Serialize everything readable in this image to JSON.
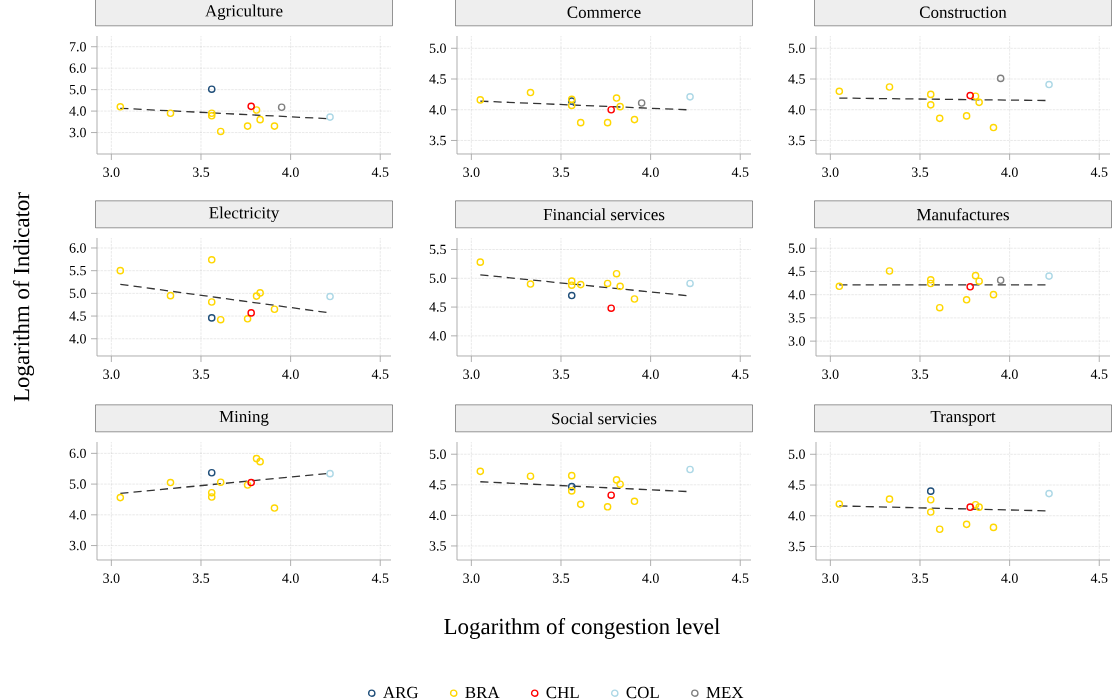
{
  "chart_data": [
    {
      "type": "scatter",
      "title": "Agriculture",
      "xlim": [
        2.92,
        4.56
      ],
      "ylim": [
        2.0,
        7.5
      ],
      "grid": true,
      "marker": "circle",
      "legend": "bottom",
      "xticks": [
        {
          "value": 3,
          "label": "3.0"
        },
        {
          "value": 3.5,
          "label": "3.5"
        },
        {
          "value": 4,
          "label": "4.0"
        },
        {
          "value": 4.5,
          "label": "4.5"
        }
      ],
      "yticks": [
        {
          "value": 3,
          "label": "3.0"
        },
        {
          "value": 4,
          "label": "4.0"
        },
        {
          "value": 5,
          "label": "5.0"
        },
        {
          "value": 6,
          "label": "6.0"
        },
        {
          "value": 7,
          "label": "7.0"
        }
      ],
      "series": [
        {
          "type": "line",
          "color": "#333333",
          "line_style": "dashed",
          "marker": "none",
          "x": [
            3.05,
            4.2
          ],
          "values": [
            4.13,
            3.65
          ]
        },
        {
          "name": "ARG",
          "color": "#1f4e79",
          "x": [
            3.56
          ],
          "values": [
            5.02
          ]
        },
        {
          "name": "BRA",
          "color": "#ffd700",
          "x": [
            3.05,
            3.33,
            3.56,
            3.56,
            3.61,
            3.76,
            3.81,
            3.83,
            3.91
          ],
          "values": [
            4.2,
            3.9,
            3.9,
            3.78,
            3.05,
            3.3,
            4.05,
            3.6,
            3.3
          ]
        },
        {
          "name": "CHL",
          "color": "#ff0000",
          "x": [
            3.78
          ],
          "values": [
            4.22
          ]
        },
        {
          "name": "COL",
          "color": "#add8e6",
          "x": [
            4.22
          ],
          "values": [
            3.72
          ]
        },
        {
          "name": "MEX",
          "color": "#808080",
          "x": [
            3.95
          ],
          "values": [
            4.18
          ]
        }
      ]
    },
    {
      "type": "scatter",
      "title": "Commerce",
      "xlim": [
        2.92,
        4.56
      ],
      "ylim": [
        3.28,
        5.2
      ],
      "grid": true,
      "marker": "circle",
      "xticks": [
        {
          "value": 3,
          "label": "3.0"
        },
        {
          "value": 3.5,
          "label": "3.5"
        },
        {
          "value": 4,
          "label": "4.0"
        },
        {
          "value": 4.5,
          "label": "4.5"
        }
      ],
      "yticks": [
        {
          "value": 3.5,
          "label": "3.5"
        },
        {
          "value": 4,
          "label": "4.0"
        },
        {
          "value": 4.5,
          "label": "4.5"
        },
        {
          "value": 5,
          "label": "5.0"
        }
      ],
      "series": [
        {
          "type": "line",
          "color": "#333333",
          "line_style": "dashed",
          "marker": "none",
          "x": [
            3.05,
            4.2
          ],
          "values": [
            4.14,
            4.0
          ]
        },
        {
          "color": "#1f4e79",
          "x": [
            3.56
          ],
          "values": [
            4.14
          ]
        },
        {
          "color": "#ffd700",
          "x": [
            3.05,
            3.33,
            3.56,
            3.56,
            3.61,
            3.76,
            3.81,
            3.83,
            3.91
          ],
          "values": [
            4.16,
            4.28,
            4.17,
            4.07,
            3.79,
            3.79,
            4.19,
            4.05,
            3.84
          ]
        },
        {
          "color": "#ff0000",
          "x": [
            3.78
          ],
          "values": [
            4.0
          ]
        },
        {
          "color": "#add8e6",
          "x": [
            4.22
          ],
          "values": [
            4.21
          ]
        },
        {
          "color": "#808080",
          "x": [
            3.95
          ],
          "values": [
            4.11
          ]
        }
      ]
    },
    {
      "type": "scatter",
      "title": "Construction",
      "xlim": [
        2.92,
        4.56
      ],
      "ylim": [
        3.28,
        5.2
      ],
      "grid": true,
      "marker": "circle",
      "xticks": [
        {
          "value": 3,
          "label": "3.0"
        },
        {
          "value": 3.5,
          "label": "3.5"
        },
        {
          "value": 4,
          "label": "4.0"
        },
        {
          "value": 4.5,
          "label": "4.5"
        }
      ],
      "yticks": [
        {
          "value": 3.5,
          "label": "3.5"
        },
        {
          "value": 4,
          "label": "4.0"
        },
        {
          "value": 4.5,
          "label": "4.5"
        },
        {
          "value": 5,
          "label": "5.0"
        }
      ],
      "series": [
        {
          "type": "line",
          "color": "#333333",
          "line_style": "dashed",
          "marker": "none",
          "x": [
            3.05,
            4.2
          ],
          "values": [
            4.19,
            4.15
          ]
        },
        {
          "color": "#ffd700",
          "x": [
            3.05,
            3.33,
            3.56,
            3.56,
            3.61,
            3.76,
            3.81,
            3.83,
            3.91
          ],
          "values": [
            4.3,
            4.37,
            4.25,
            4.08,
            3.86,
            3.9,
            4.22,
            4.12,
            3.71
          ]
        },
        {
          "color": "#ff0000",
          "x": [
            3.78
          ],
          "values": [
            4.23
          ]
        },
        {
          "color": "#add8e6",
          "x": [
            4.22
          ],
          "values": [
            4.41
          ]
        },
        {
          "color": "#808080",
          "x": [
            3.95
          ],
          "values": [
            4.51
          ]
        }
      ]
    },
    {
      "type": "scatter",
      "title": "Electricity",
      "ylabel": "Logarithm of Indicator",
      "xlim": [
        2.92,
        4.56
      ],
      "ylim": [
        3.62,
        6.22
      ],
      "grid": true,
      "marker": "circle",
      "xticks": [
        {
          "value": 3,
          "label": "3.0"
        },
        {
          "value": 3.5,
          "label": "3.5"
        },
        {
          "value": 4,
          "label": "4.0"
        },
        {
          "value": 4.5,
          "label": "4.5"
        }
      ],
      "yticks": [
        {
          "value": 4,
          "label": "4.0"
        },
        {
          "value": 4.5,
          "label": "4.5"
        },
        {
          "value": 5,
          "label": "5.0"
        },
        {
          "value": 5.5,
          "label": "5.5"
        },
        {
          "value": 6,
          "label": "6.0"
        }
      ],
      "series": [
        {
          "type": "line",
          "color": "#333333",
          "line_style": "dashed",
          "marker": "none",
          "x": [
            3.05,
            4.2
          ],
          "values": [
            5.2,
            4.58
          ]
        },
        {
          "color": "#1f4e79",
          "x": [
            3.56
          ],
          "values": [
            4.46
          ]
        },
        {
          "color": "#ffd700",
          "x": [
            3.05,
            3.33,
            3.56,
            3.56,
            3.61,
            3.76,
            3.81,
            3.83,
            3.91
          ],
          "values": [
            5.5,
            4.95,
            5.74,
            4.81,
            4.42,
            4.44,
            4.94,
            5.01,
            4.65
          ]
        },
        {
          "color": "#ff0000",
          "x": [
            3.78
          ],
          "values": [
            4.57
          ]
        },
        {
          "color": "#add8e6",
          "x": [
            4.22
          ],
          "values": [
            4.93
          ]
        }
      ]
    },
    {
      "type": "scatter",
      "title": "Financial services",
      "xlim": [
        2.92,
        4.56
      ],
      "ylim": [
        3.65,
        5.7
      ],
      "grid": true,
      "marker": "circle",
      "xticks": [
        {
          "value": 3,
          "label": "3.0"
        },
        {
          "value": 3.5,
          "label": "3.5"
        },
        {
          "value": 4,
          "label": "4.0"
        },
        {
          "value": 4.5,
          "label": "4.5"
        }
      ],
      "yticks": [
        {
          "value": 4,
          "label": "4.0"
        },
        {
          "value": 4.5,
          "label": "4.5"
        },
        {
          "value": 5,
          "label": "5.0"
        },
        {
          "value": 5.5,
          "label": "5.5"
        }
      ],
      "series": [
        {
          "type": "line",
          "color": "#333333",
          "line_style": "dashed",
          "marker": "none",
          "x": [
            3.05,
            4.2
          ],
          "values": [
            5.06,
            4.7
          ]
        },
        {
          "color": "#1f4e79",
          "x": [
            3.56
          ],
          "values": [
            4.7
          ]
        },
        {
          "color": "#ffd700",
          "x": [
            3.05,
            3.33,
            3.56,
            3.56,
            3.61,
            3.76,
            3.81,
            3.83,
            3.91
          ],
          "values": [
            5.28,
            4.9,
            4.95,
            4.88,
            4.89,
            4.91,
            5.08,
            4.86,
            4.64
          ]
        },
        {
          "color": "#ff0000",
          "x": [
            3.78
          ],
          "values": [
            4.48
          ]
        },
        {
          "color": "#add8e6",
          "x": [
            4.22
          ],
          "values": [
            4.91
          ]
        }
      ]
    },
    {
      "type": "scatter",
      "title": "Manufactures",
      "xlim": [
        2.92,
        4.56
      ],
      "ylim": [
        2.68,
        5.22
      ],
      "grid": true,
      "marker": "circle",
      "xticks": [
        {
          "value": 3,
          "label": "3.0"
        },
        {
          "value": 3.5,
          "label": "3.5"
        },
        {
          "value": 4,
          "label": "4.0"
        },
        {
          "value": 4.5,
          "label": "4.5"
        }
      ],
      "yticks": [
        {
          "value": 3,
          "label": "3.0"
        },
        {
          "value": 3.5,
          "label": "3.5"
        },
        {
          "value": 4,
          "label": "4.0"
        },
        {
          "value": 4.5,
          "label": "4.5"
        },
        {
          "value": 5,
          "label": "5.0"
        }
      ],
      "series": [
        {
          "type": "line",
          "color": "#333333",
          "line_style": "dashed",
          "marker": "none",
          "x": [
            3.05,
            4.2
          ],
          "values": [
            4.21,
            4.21
          ]
        },
        {
          "color": "#ffd700",
          "x": [
            3.05,
            3.33,
            3.56,
            3.56,
            3.61,
            3.76,
            3.81,
            3.83,
            3.91
          ],
          "values": [
            4.18,
            4.51,
            4.32,
            4.24,
            3.72,
            3.89,
            4.41,
            4.29,
            4.0
          ]
        },
        {
          "color": "#ff0000",
          "x": [
            3.78
          ],
          "values": [
            4.17
          ]
        },
        {
          "color": "#add8e6",
          "x": [
            4.22
          ],
          "values": [
            4.4
          ]
        },
        {
          "color": "#808080",
          "x": [
            3.95
          ],
          "values": [
            4.31
          ]
        }
      ]
    },
    {
      "type": "scatter",
      "title": "Mining",
      "xlim": [
        2.92,
        4.56
      ],
      "ylim": [
        2.53,
        6.37
      ],
      "grid": true,
      "marker": "circle",
      "xticks": [
        {
          "value": 3,
          "label": "3.0"
        },
        {
          "value": 3.5,
          "label": "3.5"
        },
        {
          "value": 4,
          "label": "4.0"
        },
        {
          "value": 4.5,
          "label": "4.5"
        }
      ],
      "yticks": [
        {
          "value": 3,
          "label": "3.0"
        },
        {
          "value": 4,
          "label": "4.0"
        },
        {
          "value": 5,
          "label": "5.0"
        },
        {
          "value": 6,
          "label": "6.0"
        }
      ],
      "series": [
        {
          "type": "line",
          "color": "#333333",
          "line_style": "dashed",
          "marker": "none",
          "x": [
            3.05,
            4.2
          ],
          "values": [
            4.7,
            5.34
          ]
        },
        {
          "color": "#1f4e79",
          "x": [
            3.56
          ],
          "values": [
            5.37
          ]
        },
        {
          "color": "#ffd700",
          "x": [
            3.05,
            3.33,
            3.56,
            3.56,
            3.61,
            3.76,
            3.81,
            3.83,
            3.91
          ],
          "values": [
            4.56,
            5.05,
            4.72,
            4.58,
            5.06,
            4.97,
            5.83,
            5.73,
            4.22
          ]
        },
        {
          "color": "#ff0000",
          "x": [
            3.78
          ],
          "values": [
            5.05
          ]
        },
        {
          "color": "#add8e6",
          "x": [
            4.22
          ],
          "values": [
            5.34
          ]
        }
      ]
    },
    {
      "type": "scatter",
      "title": "Social servicies",
      "xlabel": "Logarithm of congestion level",
      "xlim": [
        2.92,
        4.56
      ],
      "ylim": [
        3.27,
        5.2
      ],
      "grid": true,
      "marker": "circle",
      "xticks": [
        {
          "value": 3,
          "label": "3.0"
        },
        {
          "value": 3.5,
          "label": "3.5"
        },
        {
          "value": 4,
          "label": "4.0"
        },
        {
          "value": 4.5,
          "label": "4.5"
        }
      ],
      "yticks": [
        {
          "value": 3.5,
          "label": "3.5"
        },
        {
          "value": 4,
          "label": "4.0"
        },
        {
          "value": 4.5,
          "label": "4.5"
        },
        {
          "value": 5,
          "label": "5.0"
        }
      ],
      "series": [
        {
          "type": "line",
          "color": "#333333",
          "line_style": "dashed",
          "marker": "none",
          "x": [
            3.05,
            4.2
          ],
          "values": [
            4.55,
            4.39
          ]
        },
        {
          "color": "#1f4e79",
          "x": [
            3.56
          ],
          "values": [
            4.47
          ]
        },
        {
          "color": "#ffd700",
          "x": [
            3.05,
            3.33,
            3.56,
            3.56,
            3.61,
            3.76,
            3.81,
            3.83,
            3.91
          ],
          "values": [
            4.72,
            4.64,
            4.65,
            4.4,
            4.18,
            4.14,
            4.58,
            4.51,
            4.23
          ]
        },
        {
          "color": "#ff0000",
          "x": [
            3.78
          ],
          "values": [
            4.33
          ]
        },
        {
          "color": "#add8e6",
          "x": [
            4.22
          ],
          "values": [
            4.75
          ]
        }
      ]
    },
    {
      "type": "scatter",
      "title": "Transport",
      "xlim": [
        2.92,
        4.56
      ],
      "ylim": [
        3.28,
        5.2
      ],
      "grid": true,
      "marker": "circle",
      "xticks": [
        {
          "value": 3,
          "label": "3.0"
        },
        {
          "value": 3.5,
          "label": "3.5"
        },
        {
          "value": 4,
          "label": "4.0"
        },
        {
          "value": 4.5,
          "label": "4.5"
        }
      ],
      "yticks": [
        {
          "value": 3.5,
          "label": "3.5"
        },
        {
          "value": 4,
          "label": "4.0"
        },
        {
          "value": 4.5,
          "label": "4.5"
        },
        {
          "value": 5,
          "label": "5.0"
        }
      ],
      "series": [
        {
          "type": "line",
          "color": "#333333",
          "line_style": "dashed",
          "marker": "none",
          "x": [
            3.05,
            4.2
          ],
          "values": [
            4.16,
            4.08
          ]
        },
        {
          "color": "#1f4e79",
          "x": [
            3.56
          ],
          "values": [
            4.4
          ]
        },
        {
          "color": "#ffd700",
          "x": [
            3.05,
            3.33,
            3.56,
            3.56,
            3.61,
            3.76,
            3.81,
            3.83,
            3.91
          ],
          "values": [
            4.19,
            4.27,
            4.26,
            4.06,
            3.78,
            3.86,
            4.18,
            4.14,
            3.81
          ]
        },
        {
          "color": "#ff0000",
          "x": [
            3.78
          ],
          "values": [
            4.14
          ]
        },
        {
          "color": "#add8e6",
          "x": [
            4.22
          ],
          "values": [
            4.36
          ]
        }
      ]
    }
  ]
}
